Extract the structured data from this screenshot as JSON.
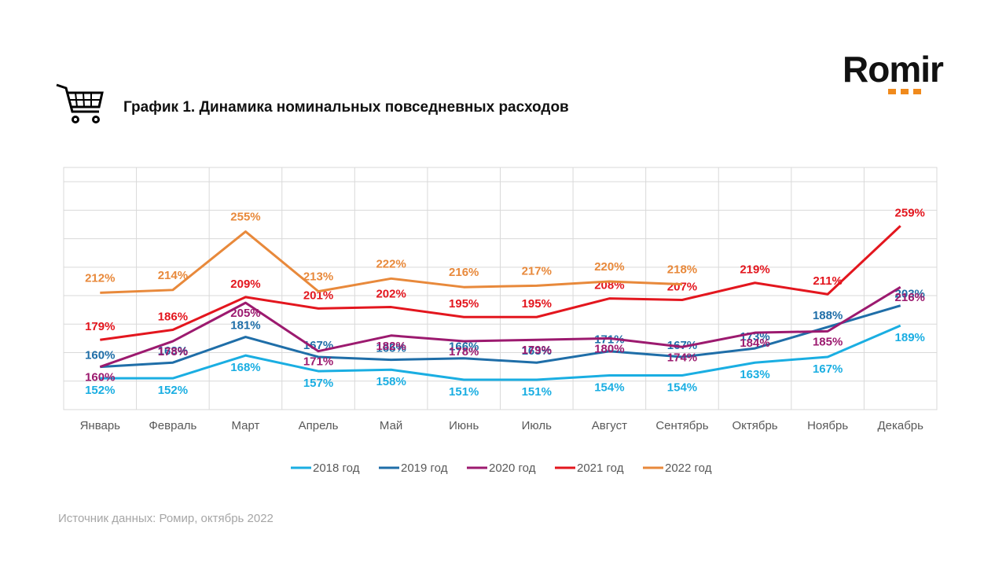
{
  "logo": "Romir",
  "source": "Источник данных: Ромир, октябрь 2022",
  "chart_data": {
    "type": "line",
    "title": "График 1. Динамика номинальных повседневных расходов",
    "categories": [
      "Январь",
      "Февраль",
      "Март",
      "Апрель",
      "Май",
      "Июнь",
      "Июль",
      "Август",
      "Сентябрь",
      "Октябрь",
      "Ноябрь",
      "Декабрь"
    ],
    "ylim": [
      130,
      300
    ],
    "yticks": [
      150,
      170,
      190,
      210,
      230,
      250,
      270,
      290
    ],
    "grid": true,
    "legend": "bottom",
    "series": [
      {
        "name": "2018 год",
        "color": "#1aaee2",
        "values": [
          152,
          152,
          168,
          157,
          158,
          151,
          151,
          154,
          154,
          163,
          167,
          189
        ],
        "value_labels": [
          "152%",
          "152%",
          "168%",
          "157%",
          "158%",
          "151%",
          "151%",
          "154%",
          "154%",
          "163%",
          "167%",
          "189%"
        ]
      },
      {
        "name": "2019 год",
        "color": "#1f6ea8",
        "values": [
          160,
          163,
          181,
          167,
          165,
          166,
          163,
          171,
          167,
          173,
          188,
          203
        ],
        "value_labels": [
          "160%",
          "163%",
          "181%",
          "167%",
          "165%",
          "166%",
          "163%",
          "171%",
          "167%",
          "173%",
          "188%",
          "203%"
        ]
      },
      {
        "name": "2020 год",
        "color": "#9c1a6f",
        "values": [
          160,
          178,
          205,
          171,
          182,
          178,
          179,
          180,
          174,
          184,
          185,
          216
        ],
        "value_labels": [
          "160%",
          "178%",
          "205%",
          "171%",
          "182%",
          "178%",
          "179%",
          "180%",
          "174%",
          "184%",
          "185%",
          "216%"
        ]
      },
      {
        "name": "2021 год",
        "color": "#e3161e",
        "values": [
          179,
          186,
          209,
          201,
          202,
          195,
          195,
          208,
          207,
          219,
          211,
          259
        ],
        "value_labels": [
          "179%",
          "186%",
          "209%",
          "201%",
          "202%",
          "195%",
          "195%",
          "208%",
          "207%",
          "219%",
          "211%",
          "259%"
        ]
      },
      {
        "name": "2022 год",
        "color": "#e8893b",
        "values": [
          212,
          214,
          255,
          213,
          222,
          216,
          217,
          220,
          218,
          null,
          null,
          null
        ],
        "value_labels": [
          "212%",
          "214%",
          "255%",
          "213%",
          "222%",
          "216%",
          "217%",
          "220%",
          "218%",
          null,
          null,
          null
        ]
      }
    ]
  }
}
